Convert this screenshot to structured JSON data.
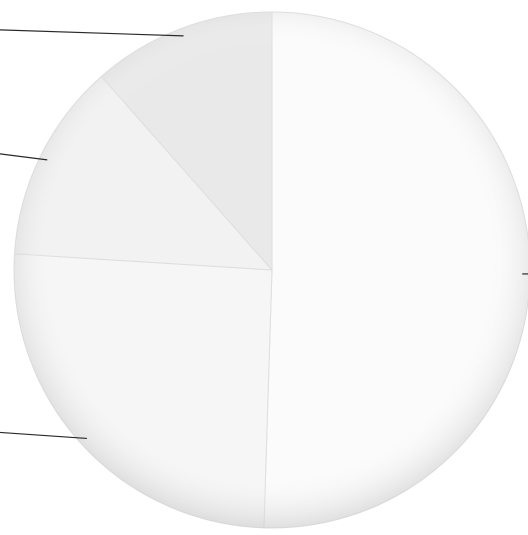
{
  "chart_data": {
    "type": "pie",
    "title": "",
    "slices": [
      {
        "label": "",
        "value": 50.5,
        "color": "#fbfbfb"
      },
      {
        "label": "",
        "value": 25.5,
        "color": "#f6f6f6"
      },
      {
        "label": "",
        "value": 12.5,
        "color": "#f2f2f2"
      },
      {
        "label": "",
        "value": 11.5,
        "color": "#e9e9e9"
      }
    ],
    "legend": "none",
    "start_angle_deg": 0,
    "direction": "clockwise",
    "leader_lines": true
  },
  "colors": {
    "background": "#ffffff",
    "leader_line": "#2a2a2a",
    "slice_edge": "#dedede"
  }
}
